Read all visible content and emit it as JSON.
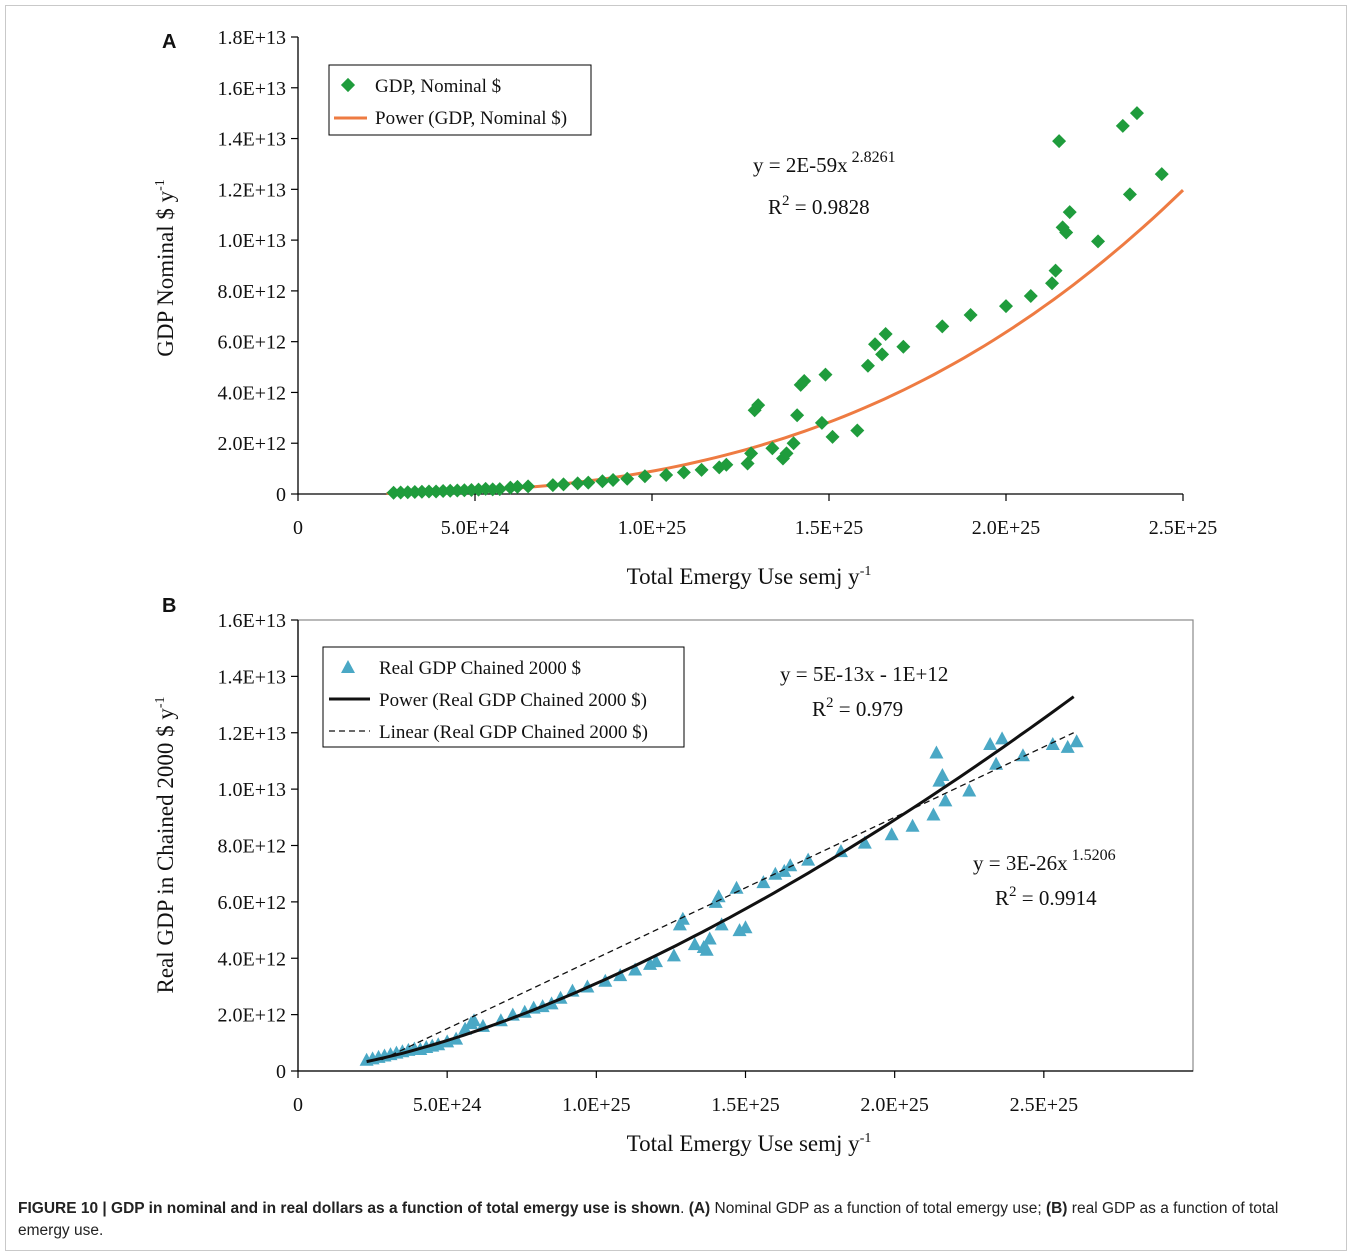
{
  "caption": {
    "label": "FIGURE 10 | GDP in nominal and in real dollars as a function of total emergy use is shown",
    "sep": ". ",
    "a_tag": "(A)",
    "a_text": " Nominal GDP as a function of total emergy use; ",
    "b_tag": "(B)",
    "b_text": " real GDP as a function of total emergy use."
  },
  "colors": {
    "gdp_nominal": "#1f9c3c",
    "power_nominal": "#ee7b42",
    "real_gdp": "#4aa8c5",
    "power_real": "#111111",
    "linear_real": "#111111"
  },
  "chart_data": [
    {
      "panel": "A",
      "type": "scatter",
      "xlabel": "Total Emergy Use semj y",
      "xlabel_sup": "-1",
      "ylabel": "GDP Nominal $ y",
      "ylabel_sup": "-1",
      "xlim": [
        0,
        2.5e+25
      ],
      "ylim": [
        0,
        18000000000000.0
      ],
      "x_tick_labels": [
        "0",
        "5.0E+24",
        "1.0E+25",
        "1.5E+25",
        "2.0E+25",
        "2.5E+25"
      ],
      "x_tick_values": [
        0,
        5e+24,
        1e+25,
        1.5e+25,
        2e+25,
        2.5e+25
      ],
      "y_tick_labels": [
        "0",
        "2.0E+12",
        "4.0E+12",
        "6.0E+12",
        "8.0E+12",
        "1.0E+13",
        "1.2E+13",
        "1.4E+13",
        "1.6E+13",
        "1.8E+13"
      ],
      "y_tick_values": [
        0,
        2000000000000.0,
        4000000000000.0,
        6000000000000.0,
        8000000000000.0,
        10000000000000.0,
        12000000000000.0,
        14000000000000.0,
        16000000000000.0,
        18000000000000.0
      ],
      "legend": [
        "GDP, Nominal $",
        "Power (GDP, Nominal $)"
      ],
      "legend_position": "top-left",
      "equation": "y = 2E-59x",
      "equation_exp": "2.8261",
      "r2_label": "R",
      "r2_exp": "2",
      "r2_value": " = 0.9828",
      "fit": {
        "type": "power",
        "a": 2e-59,
        "b": 2.8261,
        "x_range": [
          2.5e+24,
          2.5e+25
        ]
      },
      "series": [
        {
          "name": "GDP, Nominal $",
          "marker": "diamond",
          "x": [
            2.7e+24,
            2.9e+24,
            3.1e+24,
            3.3e+24,
            3.5e+24,
            3.7e+24,
            3.9e+24,
            4.1e+24,
            4.3e+24,
            4.5e+24,
            4.7e+24,
            4.9e+24,
            5.1e+24,
            5.3e+24,
            5.5e+24,
            5.7e+24,
            6e+24,
            6.2e+24,
            6.5e+24,
            7.2e+24,
            7.5e+24,
            7.9e+24,
            8.2e+24,
            8.6e+24,
            8.9e+24,
            9.3e+24,
            9.8e+24,
            1.04e+25,
            1.09e+25,
            1.14e+25,
            1.19e+25,
            1.21e+25,
            1.27e+25,
            1.28e+25,
            1.29e+25,
            1.3e+25,
            1.34e+25,
            1.37e+25,
            1.38e+25,
            1.4e+25,
            1.41e+25,
            1.42e+25,
            1.43e+25,
            1.48e+25,
            1.49e+25,
            1.51e+25,
            1.58e+25,
            1.61e+25,
            1.63e+25,
            1.65e+25,
            1.66e+25,
            1.71e+25,
            1.82e+25,
            1.9e+25,
            2e+25,
            2.07e+25,
            2.13e+25,
            2.14e+25,
            2.15e+25,
            2.16e+25,
            2.17e+25,
            2.18e+25,
            2.26e+25,
            2.33e+25,
            2.35e+25,
            2.37e+25,
            2.44e+25
          ],
          "y": [
            50000000000.0,
            60000000000.0,
            70000000000.0,
            80000000000.0,
            90000000000.0,
            100000000000.0,
            100000000000.0,
            120000000000.0,
            130000000000.0,
            140000000000.0,
            150000000000.0,
            160000000000.0,
            170000000000.0,
            200000000000.0,
            180000000000.0,
            190000000000.0,
            250000000000.0,
            280000000000.0,
            300000000000.0,
            350000000000.0,
            380000000000.0,
            420000000000.0,
            450000000000.0,
            500000000000.0,
            550000000000.0,
            600000000000.0,
            700000000000.0,
            750000000000.0,
            850000000000.0,
            950000000000.0,
            1050000000000.0,
            1150000000000.0,
            1200000000000.0,
            1600000000000.0,
            3300000000000.0,
            3500000000000.0,
            1800000000000.0,
            1400000000000.0,
            1600000000000.0,
            2000000000000.0,
            3100000000000.0,
            4300000000000.0,
            4450000000000.0,
            2800000000000.0,
            4700000000000.0,
            2250000000000.0,
            2500000000000.0,
            5050000000000.0,
            5900000000000.0,
            5500000000000.0,
            6300000000000.0,
            5800000000000.0,
            6600000000000.0,
            7050000000000.0,
            7400000000000.0,
            7800000000000.0,
            8300000000000.0,
            8800000000000.0,
            13900000000000.0,
            10500000000000.0,
            10300000000000.0,
            11100000000000.0,
            9950000000000.0,
            14500000000000.0,
            11800000000000.0,
            15000000000000.0,
            12600000000000.0
          ]
        }
      ]
    },
    {
      "panel": "B",
      "type": "scatter",
      "xlabel": "Total Emergy Use semj y",
      "xlabel_sup": "-1",
      "ylabel": "Real GDP in Chained 2000 $ y",
      "ylabel_sup": "-1",
      "xlim": [
        0,
        3e+25
      ],
      "ylim": [
        0,
        16000000000000.0
      ],
      "x_tick_labels": [
        "0",
        "5.0E+24",
        "1.0E+25",
        "1.5E+25",
        "2.0E+25",
        "2.5E+25"
      ],
      "x_tick_values": [
        0,
        5e+24,
        1e+25,
        1.5e+25,
        2e+25,
        2.5e+25
      ],
      "y_tick_labels": [
        "0",
        "2.0E+12",
        "4.0E+12",
        "6.0E+12",
        "8.0E+12",
        "1.0E+13",
        "1.2E+13",
        "1.4E+13",
        "1.6E+13"
      ],
      "y_tick_values": [
        0,
        2000000000000.0,
        4000000000000.0,
        6000000000000.0,
        8000000000000.0,
        10000000000000.0,
        12000000000000.0,
        14000000000000.0,
        16000000000000.0
      ],
      "legend": [
        "Real GDP Chained 2000 $",
        "Power (Real GDP Chained 2000 $)",
        "Linear (Real GDP Chained 2000 $)"
      ],
      "legend_position": "top-left",
      "equation_linear": "y = 5E-13x - 1E+12",
      "r2_linear_label": "R",
      "r2_linear_exp": "2",
      "r2_linear_value": " = 0.979",
      "equation_power": "y = 3E-26x",
      "equation_power_exp": "1.5206",
      "r2_power_label": "R",
      "r2_power_exp": "2",
      "r2_power_value": " = 0.9914",
      "fit_power": {
        "type": "power",
        "a": 3e-26,
        "b": 1.5206,
        "x_range": [
          2.3e+24,
          2.6e+25
        ]
      },
      "fit_linear": {
        "type": "linear",
        "slope": 5e-13,
        "intercept": -1000000000000.0,
        "x_range": [
          2.8e+24,
          2.6e+25
        ]
      },
      "series": [
        {
          "name": "Real GDP Chained 2000 $",
          "marker": "triangle",
          "x": [
            2.3e+24,
            2.5e+24,
            2.7e+24,
            2.9e+24,
            3.1e+24,
            3.3e+24,
            3.5e+24,
            3.7e+24,
            3.9e+24,
            4.1e+24,
            4.3e+24,
            4.5e+24,
            4.7e+24,
            5e+24,
            5.3e+24,
            5.6e+24,
            5.8e+24,
            5.9e+24,
            6.2e+24,
            6.8e+24,
            7.2e+24,
            7.6e+24,
            7.9e+24,
            8.2e+24,
            8.5e+24,
            8.8e+24,
            9.2e+24,
            9.7e+24,
            1.03e+25,
            1.08e+25,
            1.13e+25,
            1.18e+25,
            1.2e+25,
            1.26e+25,
            1.28e+25,
            1.29e+25,
            1.33e+25,
            1.36e+25,
            1.37e+25,
            1.38e+25,
            1.4e+25,
            1.41e+25,
            1.42e+25,
            1.47e+25,
            1.48e+25,
            1.5e+25,
            1.56e+25,
            1.6e+25,
            1.63e+25,
            1.65e+25,
            1.71e+25,
            1.82e+25,
            1.9e+25,
            1.99e+25,
            2.06e+25,
            2.13e+25,
            2.14e+25,
            2.15e+25,
            2.16e+25,
            2.17e+25,
            2.25e+25,
            2.32e+25,
            2.34e+25,
            2.36e+25,
            2.43e+25,
            2.53e+25,
            2.58e+25,
            2.61e+25
          ],
          "y": [
            400000000000.0,
            450000000000.0,
            500000000000.0,
            550000000000.0,
            600000000000.0,
            650000000000.0,
            700000000000.0,
            750000000000.0,
            800000000000.0,
            780000000000.0,
            850000000000.0,
            900000000000.0,
            950000000000.0,
            1050000000000.0,
            1150000000000.0,
            1500000000000.0,
            1700000000000.0,
            1800000000000.0,
            1600000000000.0,
            1800000000000.0,
            2000000000000.0,
            2100000000000.0,
            2250000000000.0,
            2300000000000.0,
            2400000000000.0,
            2600000000000.0,
            2850000000000.0,
            3000000000000.0,
            3200000000000.0,
            3400000000000.0,
            3600000000000.0,
            3800000000000.0,
            3900000000000.0,
            4100000000000.0,
            5200000000000.0,
            5400000000000.0,
            4500000000000.0,
            4400000000000.0,
            4300000000000.0,
            4700000000000.0,
            6000000000000.0,
            6200000000000.0,
            5200000000000.0,
            6500000000000.0,
            5000000000000.0,
            5100000000000.0,
            6700000000000.0,
            7000000000000.0,
            7100000000000.0,
            7300000000000.0,
            7500000000000.0,
            7800000000000.0,
            8100000000000.0,
            8400000000000.0,
            8700000000000.0,
            9100000000000.0,
            11300000000000.0,
            10300000000000.0,
            10500000000000.0,
            9600000000000.0,
            9950000000000.0,
            11600000000000.0,
            10900000000000.0,
            11800000000000.0,
            11200000000000.0,
            11600000000000.0,
            11500000000000.0,
            11700000000000.0
          ]
        }
      ]
    }
  ]
}
